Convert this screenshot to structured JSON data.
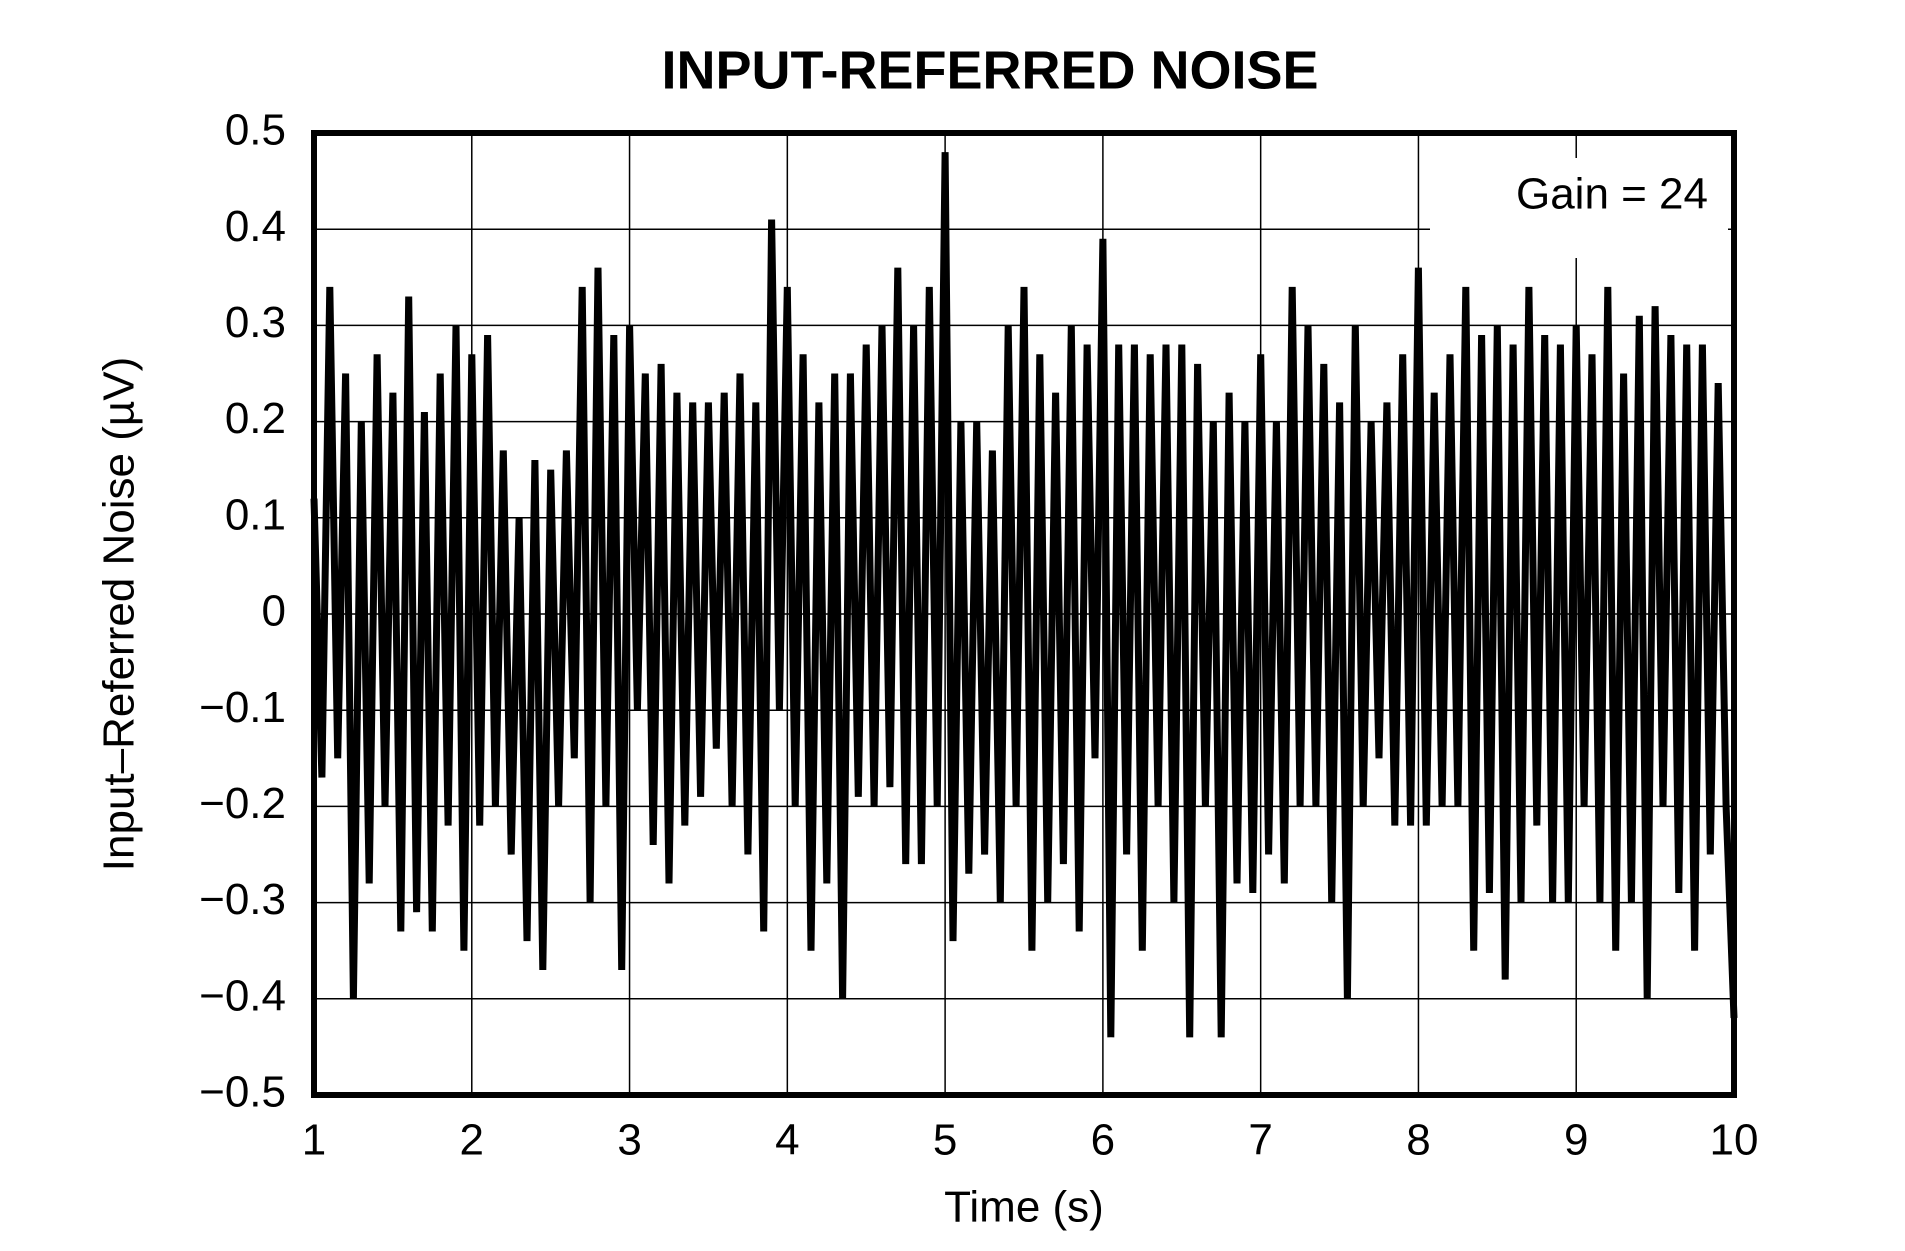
{
  "chart_data": {
    "type": "line",
    "title": "INPUT-REFERRED NOISE",
    "xlabel": "Time (s)",
    "ylabel": "Input–Referred Noise (µV)",
    "annotation": "Gain = 24",
    "x": [
      1,
      1.05,
      1.1,
      1.15,
      1.2,
      1.25,
      1.3,
      1.35,
      1.4,
      1.45,
      1.5,
      1.55,
      1.6,
      1.65,
      1.7,
      1.75,
      1.8,
      1.85,
      1.9,
      1.95,
      2,
      2.05,
      2.1,
      2.15,
      2.2,
      2.25,
      2.3,
      2.35,
      2.4,
      2.45,
      2.5,
      2.55,
      2.6,
      2.65,
      2.7,
      2.75,
      2.8,
      2.85,
      2.9,
      2.95,
      3,
      3.05,
      3.1,
      3.15,
      3.2,
      3.25,
      3.3,
      3.35,
      3.4,
      3.45,
      3.5,
      3.55,
      3.6,
      3.65,
      3.7,
      3.75,
      3.8,
      3.85,
      3.9,
      3.95,
      4,
      4.05,
      4.1,
      4.15,
      4.2,
      4.25,
      4.3,
      4.35,
      4.4,
      4.45,
      4.5,
      4.55,
      4.6,
      4.65,
      4.7,
      4.75,
      4.8,
      4.85,
      4.9,
      4.95,
      5,
      5.05,
      5.1,
      5.15,
      5.2,
      5.25,
      5.3,
      5.35,
      5.4,
      5.45,
      5.5,
      5.55,
      5.6,
      5.65,
      5.7,
      5.75,
      5.8,
      5.85,
      5.9,
      5.95,
      6,
      6.05,
      6.1,
      6.15,
      6.2,
      6.25,
      6.3,
      6.35,
      6.4,
      6.45,
      6.5,
      6.55,
      6.6,
      6.65,
      6.7,
      6.75,
      6.8,
      6.85,
      6.9,
      6.95,
      7,
      7.05,
      7.1,
      7.15,
      7.2,
      7.25,
      7.3,
      7.35,
      7.4,
      7.45,
      7.5,
      7.55,
      7.6,
      7.65,
      7.7,
      7.75,
      7.8,
      7.85,
      7.9,
      7.95,
      8,
      8.05,
      8.1,
      8.15,
      8.2,
      8.25,
      8.3,
      8.35,
      8.4,
      8.45,
      8.5,
      8.55,
      8.6,
      8.65,
      8.7,
      8.75,
      8.8,
      8.85,
      8.9,
      8.95,
      9,
      9.05,
      9.1,
      9.15,
      9.2,
      9.25,
      9.3,
      9.35,
      9.4,
      9.45,
      9.5,
      9.55,
      9.6,
      9.65,
      9.7,
      9.75,
      9.8,
      9.85,
      9.9,
      9.95,
      10
    ],
    "values": [
      0.12,
      -0.17,
      0.34,
      -0.15,
      0.25,
      -0.4,
      0.2,
      -0.28,
      0.27,
      -0.2,
      0.23,
      -0.33,
      0.33,
      -0.31,
      0.21,
      -0.33,
      0.25,
      -0.22,
      0.3,
      -0.35,
      0.27,
      -0.22,
      0.29,
      -0.2,
      0.17,
      -0.25,
      0.1,
      -0.34,
      0.16,
      -0.37,
      0.15,
      -0.2,
      0.17,
      -0.15,
      0.34,
      -0.3,
      0.36,
      -0.2,
      0.29,
      -0.37,
      0.3,
      -0.1,
      0.25,
      -0.24,
      0.26,
      -0.28,
      0.23,
      -0.22,
      0.22,
      -0.19,
      0.22,
      -0.14,
      0.23,
      -0.2,
      0.25,
      -0.25,
      0.22,
      -0.33,
      0.41,
      -0.1,
      0.34,
      -0.2,
      0.27,
      -0.35,
      0.22,
      -0.28,
      0.25,
      -0.4,
      0.25,
      -0.19,
      0.28,
      -0.2,
      0.3,
      -0.18,
      0.36,
      -0.26,
      0.3,
      -0.26,
      0.34,
      -0.2,
      0.48,
      -0.34,
      0.2,
      -0.27,
      0.2,
      -0.25,
      0.17,
      -0.3,
      0.3,
      -0.2,
      0.34,
      -0.35,
      0.27,
      -0.3,
      0.23,
      -0.26,
      0.3,
      -0.33,
      0.28,
      -0.15,
      0.39,
      -0.44,
      0.28,
      -0.25,
      0.28,
      -0.35,
      0.27,
      -0.2,
      0.28,
      -0.3,
      0.28,
      -0.44,
      0.26,
      -0.2,
      0.2,
      -0.44,
      0.23,
      -0.28,
      0.2,
      -0.29,
      0.27,
      -0.25,
      0.2,
      -0.28,
      0.34,
      -0.2,
      0.3,
      -0.2,
      0.26,
      -0.3,
      0.22,
      -0.4,
      0.3,
      -0.2,
      0.2,
      -0.15,
      0.22,
      -0.22,
      0.27,
      -0.22,
      0.36,
      -0.22,
      0.23,
      -0.2,
      0.27,
      -0.2,
      0.34,
      -0.35,
      0.29,
      -0.29,
      0.3,
      -0.38,
      0.28,
      -0.3,
      0.34,
      -0.22,
      0.29,
      -0.3,
      0.28,
      -0.3,
      0.3,
      -0.2,
      0.27,
      -0.3,
      0.34,
      -0.35,
      0.25,
      -0.3,
      0.31,
      -0.4,
      0.32,
      -0.2,
      0.29,
      -0.29,
      0.28,
      -0.35,
      0.28,
      -0.25,
      0.24,
      -0.2,
      -0.42
    ],
    "color": "#000000",
    "xlim": [
      1,
      10
    ],
    "xticks": [
      1,
      2,
      3,
      4,
      5,
      6,
      7,
      8,
      9,
      10
    ],
    "ylim": [
      -0.5,
      0.5
    ],
    "yticks": [
      {
        "value": -0.5,
        "label": "−0.5"
      },
      {
        "value": -0.4,
        "label": "−0.4"
      },
      {
        "value": -0.3,
        "label": "−0.3"
      },
      {
        "value": -0.2,
        "label": "−0.2"
      },
      {
        "value": -0.1,
        "label": "−0.1"
      },
      0,
      0.1,
      0.2,
      0.3,
      0.4,
      0.5
    ],
    "grid": true
  }
}
